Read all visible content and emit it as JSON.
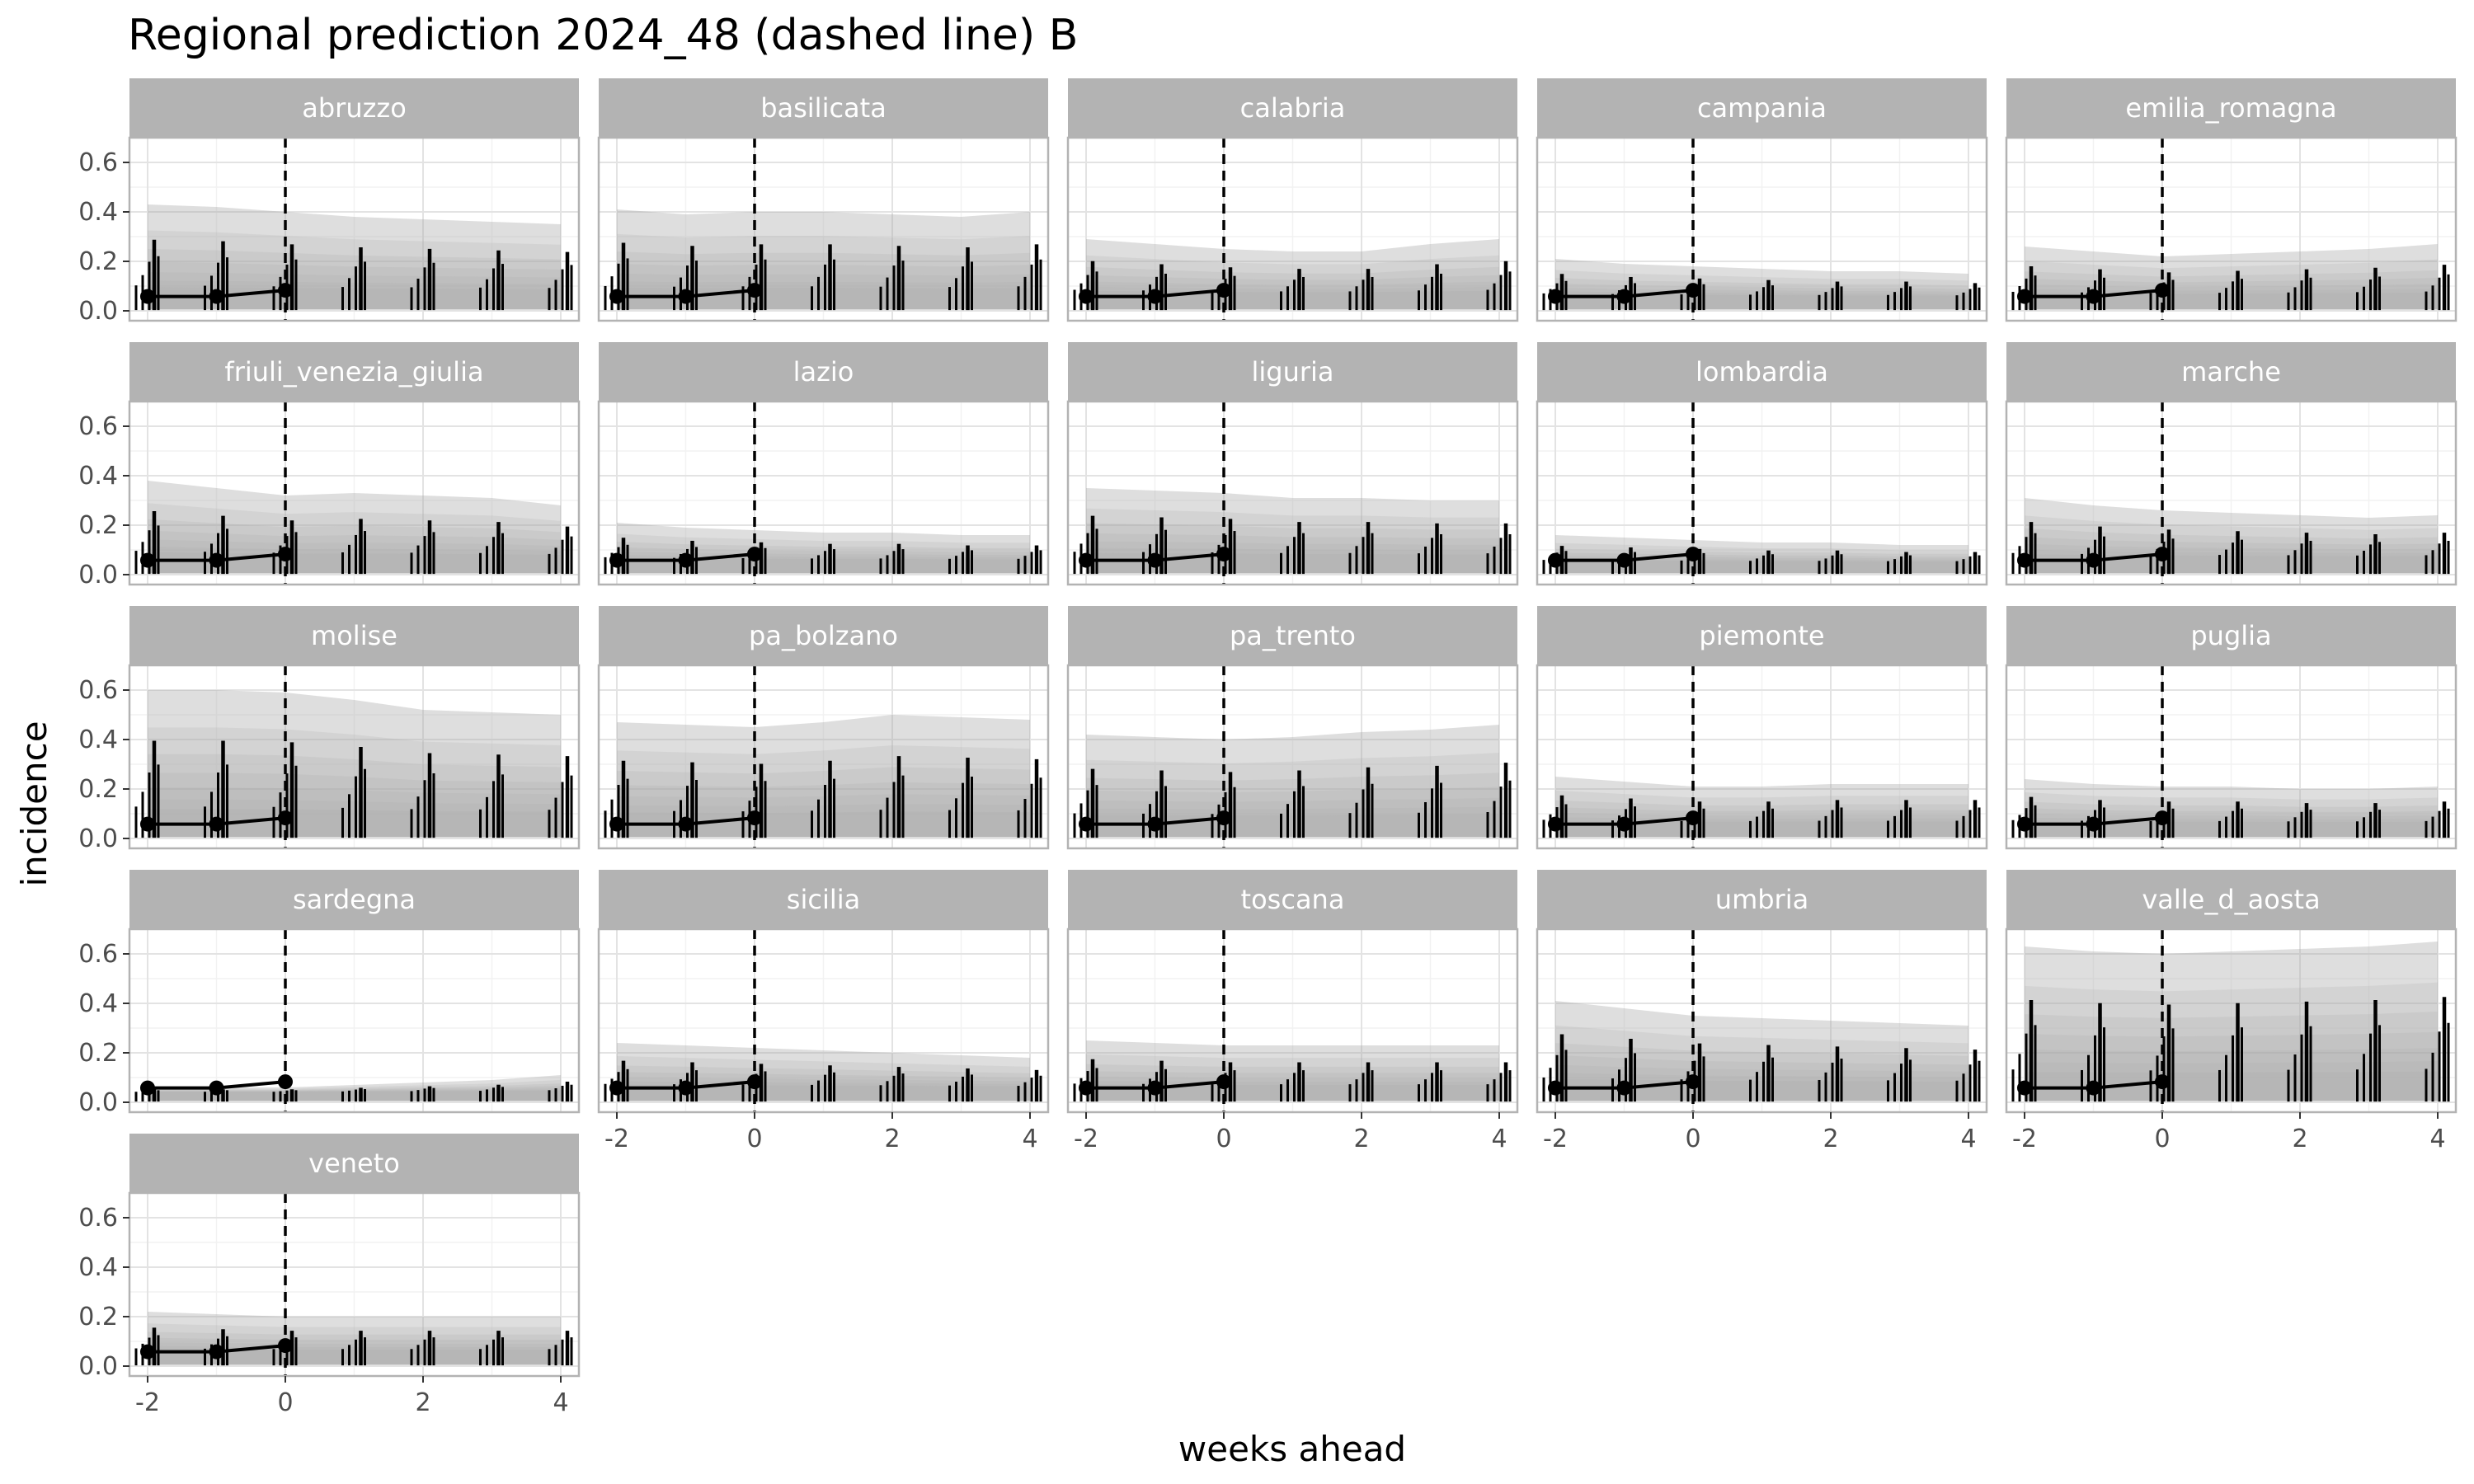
{
  "chart_data": {
    "type": "line",
    "title": "Regional prediction 2024_48 (dashed line) B",
    "xlabel": "weeks ahead",
    "ylabel": "incidence",
    "xlim": [
      -2,
      4
    ],
    "ylim": [
      0,
      0.6
    ],
    "x_ticks": [
      "-2",
      "0",
      "2",
      "4"
    ],
    "y_ticks": [
      "0.0",
      "0.2",
      "0.4",
      "0.6"
    ],
    "reference_x": 0,
    "grid": true,
    "legend": "none",
    "colors": {
      "strip": "#b3b3b3",
      "band": "#a9a9a9",
      "line": "#000000",
      "grid_major": "#e3e3e3",
      "grid_minor": "#f2f2f2",
      "border": "#b3b3b3"
    },
    "observed": {
      "x": [
        -2,
        -1,
        0
      ],
      "y": [
        0.058,
        0.058,
        0.083
      ]
    },
    "forecast_x": [
      -2,
      -1,
      0,
      1,
      2,
      3,
      4
    ],
    "panels": [
      {
        "region": "abruzzo",
        "upper": [
          0.43,
          0.42,
          0.4,
          0.38,
          0.37,
          0.36,
          0.35
        ],
        "median": [
          0.055,
          0.055,
          0.055,
          0.055,
          0.055,
          0.055,
          0.055
        ]
      },
      {
        "region": "basilicata",
        "upper": [
          0.41,
          0.39,
          0.4,
          0.4,
          0.39,
          0.38,
          0.4
        ],
        "median": [
          0.055,
          0.055,
          0.055,
          0.055,
          0.055,
          0.055,
          0.055
        ]
      },
      {
        "region": "calabria",
        "upper": [
          0.29,
          0.27,
          0.25,
          0.24,
          0.24,
          0.27,
          0.29
        ],
        "median": [
          0.055,
          0.055,
          0.055,
          0.055,
          0.055,
          0.055,
          0.055
        ]
      },
      {
        "region": "campania",
        "upper": [
          0.21,
          0.19,
          0.18,
          0.17,
          0.16,
          0.16,
          0.15
        ],
        "median": [
          0.05,
          0.05,
          0.05,
          0.05,
          0.05,
          0.05,
          0.05
        ]
      },
      {
        "region": "emilia_romagna",
        "upper": [
          0.26,
          0.24,
          0.22,
          0.23,
          0.24,
          0.25,
          0.27
        ],
        "median": [
          0.05,
          0.05,
          0.05,
          0.05,
          0.05,
          0.05,
          0.05
        ]
      },
      {
        "region": "friuli_venezia_giulia",
        "upper": [
          0.38,
          0.35,
          0.32,
          0.33,
          0.32,
          0.31,
          0.28
        ],
        "median": [
          0.055,
          0.055,
          0.055,
          0.055,
          0.055,
          0.055,
          0.055
        ]
      },
      {
        "region": "lazio",
        "upper": [
          0.21,
          0.19,
          0.18,
          0.17,
          0.17,
          0.16,
          0.16
        ],
        "median": [
          0.05,
          0.05,
          0.05,
          0.05,
          0.05,
          0.05,
          0.05
        ]
      },
      {
        "region": "liguria",
        "upper": [
          0.35,
          0.34,
          0.33,
          0.31,
          0.31,
          0.3,
          0.3
        ],
        "median": [
          0.055,
          0.055,
          0.055,
          0.055,
          0.055,
          0.055,
          0.055
        ]
      },
      {
        "region": "lombardia",
        "upper": [
          0.16,
          0.15,
          0.14,
          0.13,
          0.13,
          0.12,
          0.12
        ],
        "median": [
          0.045,
          0.045,
          0.045,
          0.045,
          0.045,
          0.045,
          0.045
        ]
      },
      {
        "region": "marche",
        "upper": [
          0.31,
          0.28,
          0.26,
          0.25,
          0.24,
          0.23,
          0.24
        ],
        "median": [
          0.055,
          0.055,
          0.055,
          0.055,
          0.055,
          0.055,
          0.055
        ]
      },
      {
        "region": "molise",
        "upper": [
          0.6,
          0.6,
          0.59,
          0.56,
          0.52,
          0.51,
          0.5
        ],
        "median": [
          0.06,
          0.06,
          0.06,
          0.06,
          0.06,
          0.06,
          0.06
        ]
      },
      {
        "region": "pa_bolzano",
        "upper": [
          0.47,
          0.46,
          0.45,
          0.47,
          0.5,
          0.49,
          0.48
        ],
        "median": [
          0.06,
          0.06,
          0.06,
          0.06,
          0.06,
          0.06,
          0.06
        ]
      },
      {
        "region": "pa_trento",
        "upper": [
          0.42,
          0.41,
          0.4,
          0.41,
          0.43,
          0.44,
          0.46
        ],
        "median": [
          0.055,
          0.055,
          0.055,
          0.055,
          0.055,
          0.055,
          0.055
        ]
      },
      {
        "region": "piemonte",
        "upper": [
          0.25,
          0.23,
          0.21,
          0.21,
          0.22,
          0.22,
          0.22
        ],
        "median": [
          0.05,
          0.05,
          0.05,
          0.05,
          0.05,
          0.05,
          0.05
        ]
      },
      {
        "region": "puglia",
        "upper": [
          0.24,
          0.22,
          0.21,
          0.21,
          0.2,
          0.2,
          0.21
        ],
        "median": [
          0.05,
          0.05,
          0.05,
          0.05,
          0.05,
          0.05,
          0.05
        ]
      },
      {
        "region": "sardegna",
        "upper": [
          0.06,
          0.06,
          0.06,
          0.07,
          0.08,
          0.09,
          0.11
        ],
        "median": [
          0.04,
          0.04,
          0.04,
          0.04,
          0.04,
          0.04,
          0.04
        ]
      },
      {
        "region": "sicilia",
        "upper": [
          0.24,
          0.23,
          0.22,
          0.21,
          0.2,
          0.19,
          0.18
        ],
        "median": [
          0.05,
          0.05,
          0.05,
          0.05,
          0.05,
          0.05,
          0.05
        ]
      },
      {
        "region": "toscana",
        "upper": [
          0.25,
          0.24,
          0.23,
          0.23,
          0.23,
          0.23,
          0.23
        ],
        "median": [
          0.05,
          0.05,
          0.05,
          0.05,
          0.05,
          0.05,
          0.05
        ]
      },
      {
        "region": "umbria",
        "upper": [
          0.41,
          0.38,
          0.35,
          0.34,
          0.33,
          0.32,
          0.31
        ],
        "median": [
          0.055,
          0.055,
          0.055,
          0.055,
          0.055,
          0.055,
          0.055
        ]
      },
      {
        "region": "valle_d_aosta",
        "upper": [
          0.63,
          0.61,
          0.6,
          0.61,
          0.62,
          0.63,
          0.65
        ],
        "median": [
          0.06,
          0.06,
          0.06,
          0.06,
          0.06,
          0.06,
          0.06
        ]
      },
      {
        "region": "veneto",
        "upper": [
          0.22,
          0.21,
          0.2,
          0.2,
          0.2,
          0.2,
          0.2
        ],
        "median": [
          0.05,
          0.05,
          0.05,
          0.05,
          0.05,
          0.05,
          0.05
        ]
      }
    ]
  }
}
